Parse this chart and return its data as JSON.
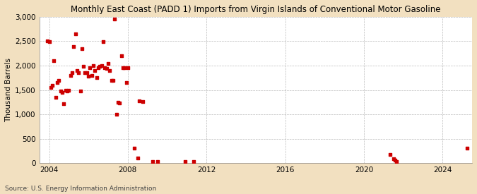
{
  "title": "Monthly East Coast (PADD 1) Imports from Virgin Islands of Conventional Motor Gasoline",
  "ylabel": "Thousand Barrels",
  "source": "Source: U.S. Energy Information Administration",
  "background_color": "#f2e0c0",
  "plot_bg_color": "#ffffff",
  "marker_color": "#cc0000",
  "ylim": [
    0,
    3000
  ],
  "yticks": [
    0,
    500,
    1000,
    1500,
    2000,
    2500,
    3000
  ],
  "xlim": [
    2003.5,
    2025.5
  ],
  "xticks": [
    2004,
    2008,
    2012,
    2016,
    2020,
    2024
  ],
  "data_x": [
    2003.92,
    2004.0,
    2004.08,
    2004.17,
    2004.25,
    2004.33,
    2004.42,
    2004.5,
    2004.58,
    2004.67,
    2004.75,
    2004.83,
    2004.92,
    2005.0,
    2005.08,
    2005.17,
    2005.25,
    2005.33,
    2005.42,
    2005.5,
    2005.58,
    2005.67,
    2005.75,
    2005.83,
    2005.92,
    2006.0,
    2006.08,
    2006.17,
    2006.25,
    2006.33,
    2006.42,
    2006.5,
    2006.58,
    2006.67,
    2006.75,
    2006.83,
    2006.92,
    2007.0,
    2007.08,
    2007.17,
    2007.25,
    2007.33,
    2007.42,
    2007.5,
    2007.58,
    2007.67,
    2007.75,
    2007.83,
    2007.92,
    2008.0,
    2008.33,
    2008.5,
    2008.58,
    2008.75,
    2009.25,
    2009.5,
    2010.92,
    2011.33,
    2021.33,
    2021.5,
    2021.58,
    2021.67,
    2025.25
  ],
  "data_y": [
    2500,
    2490,
    1550,
    1600,
    2100,
    1350,
    1650,
    1700,
    1480,
    1450,
    1220,
    1500,
    1480,
    1500,
    1800,
    1850,
    2390,
    2650,
    1900,
    1850,
    1480,
    2350,
    1990,
    1860,
    1850,
    1790,
    1950,
    1800,
    2000,
    1900,
    1750,
    1950,
    1980,
    2000,
    2490,
    1950,
    1940,
    2050,
    1900,
    1700,
    1700,
    2950,
    1000,
    1250,
    1240,
    2200,
    1950,
    1960,
    1650,
    1960,
    310,
    100,
    1270,
    1260,
    25,
    25,
    25,
    25,
    180,
    90,
    60,
    25,
    300
  ]
}
